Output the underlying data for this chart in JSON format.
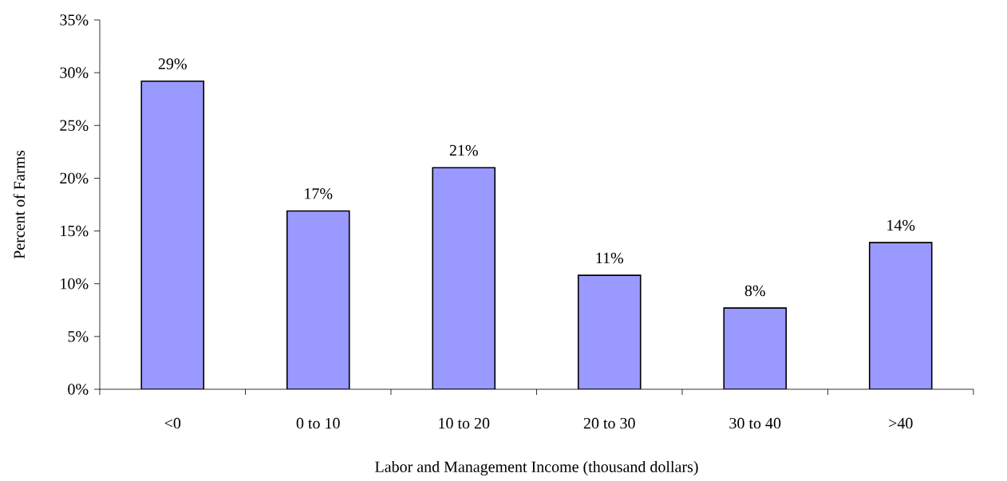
{
  "chart_data": {
    "type": "bar",
    "xlabel": "Labor and Management Income (thousand dollars)",
    "ylabel": "Percent of Farms",
    "categories": [
      "<0",
      "0 to 10",
      "10 to 20",
      "20 to 30",
      "30 to 40",
      ">40"
    ],
    "values": [
      29.2,
      16.9,
      21.0,
      10.8,
      7.7,
      13.9
    ],
    "value_labels": [
      "29%",
      "17%",
      "21%",
      "11%",
      "8%",
      "14%"
    ],
    "color": "#9999ff",
    "ylim": [
      0,
      35
    ],
    "yticks": [
      {
        "value": 0,
        "label": "0%"
      },
      {
        "value": 5,
        "label": "5%"
      },
      {
        "value": 10,
        "label": "10%"
      },
      {
        "value": 15,
        "label": "15%"
      },
      {
        "value": 20,
        "label": "20%"
      },
      {
        "value": 25,
        "label": "25%"
      },
      {
        "value": 30,
        "label": "30%"
      },
      {
        "value": 35,
        "label": "35%"
      }
    ],
    "grid": false
  }
}
